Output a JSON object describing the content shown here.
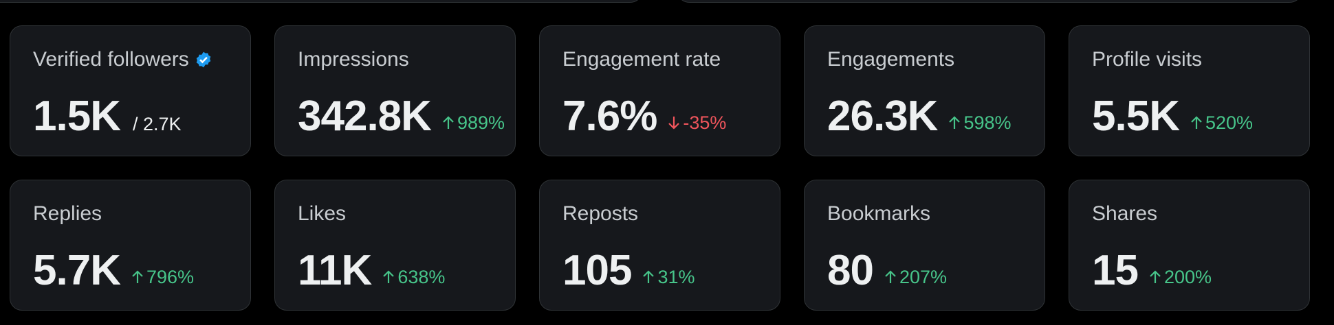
{
  "cards": [
    {
      "label": "Verified followers",
      "verified": true,
      "value": "1.5K",
      "total": "/ 2.7K"
    },
    {
      "label": "Impressions",
      "value": "342.8K",
      "change": "989%",
      "direction": "up"
    },
    {
      "label": "Engagement rate",
      "value": "7.6%",
      "change": "-35%",
      "direction": "down"
    },
    {
      "label": "Engagements",
      "value": "26.3K",
      "change": "598%",
      "direction": "up"
    },
    {
      "label": "Profile visits",
      "value": "5.5K",
      "change": "520%",
      "direction": "up"
    },
    {
      "label": "Replies",
      "value": "5.7K",
      "change": "796%",
      "direction": "up"
    },
    {
      "label": "Likes",
      "value": "11K",
      "change": "638%",
      "direction": "up"
    },
    {
      "label": "Reposts",
      "value": "105",
      "change": "31%",
      "direction": "up"
    },
    {
      "label": "Bookmarks",
      "value": "80",
      "change": "207%",
      "direction": "up"
    },
    {
      "label": "Shares",
      "value": "15",
      "change": "200%",
      "direction": "up"
    }
  ]
}
